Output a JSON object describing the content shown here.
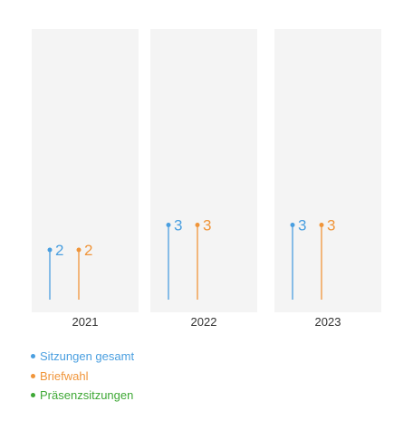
{
  "chart_data": {
    "type": "lollipop",
    "categories": [
      "2021",
      "2022",
      "2023"
    ],
    "series": [
      {
        "name": "Sitzungen gesamt",
        "color": "#4a9fe0",
        "values": [
          2,
          3,
          3
        ]
      },
      {
        "name": "Briefwahl",
        "color": "#f0953a",
        "values": [
          2,
          3,
          3
        ]
      },
      {
        "name": "Präsenzsitzungen",
        "color": "#3ea835",
        "values": [
          0,
          0,
          0
        ]
      }
    ],
    "ylim": [
      0,
      4
    ],
    "legend_position": "bottom-left",
    "panel_color": "#f4f4f4"
  }
}
